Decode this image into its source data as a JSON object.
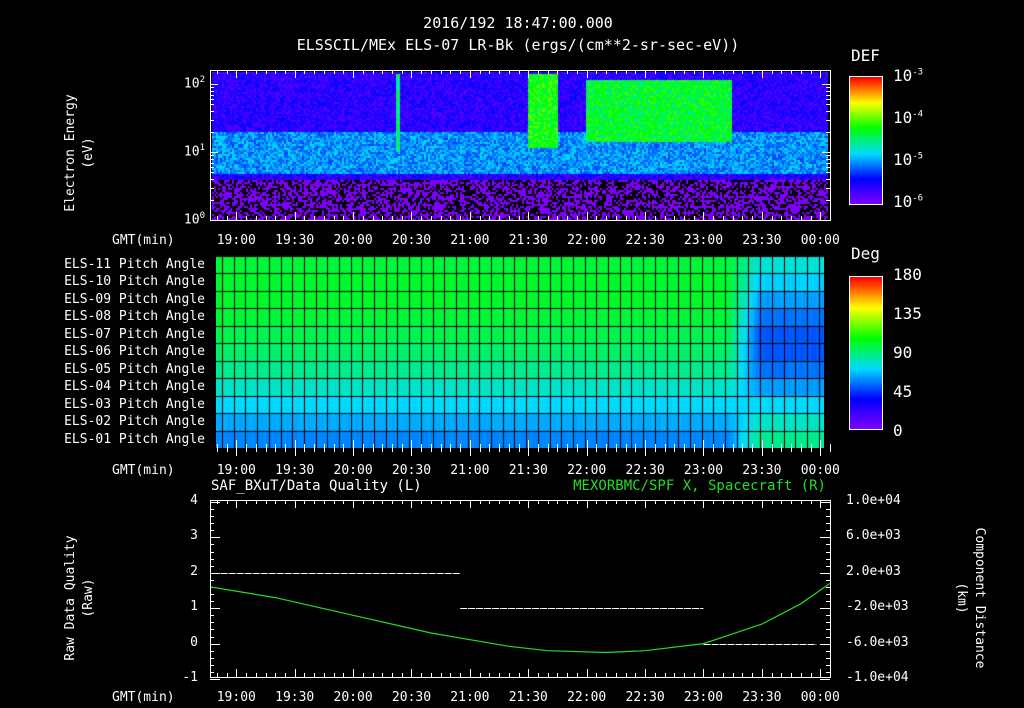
{
  "header": {
    "timestamp": "2016/192 18:47:00.000"
  },
  "colors": {
    "background": "#000000",
    "axis": "#ffffff",
    "spacecraft_line": "#22dd22"
  },
  "time_axis": {
    "label": "GMT(min)",
    "ticks": [
      "19:00",
      "19:30",
      "20:00",
      "20:30",
      "21:00",
      "21:30",
      "22:00",
      "22:30",
      "23:00",
      "23:30",
      "00:00"
    ],
    "start_minute": -13,
    "end_minute": 305
  },
  "chart_data": [
    {
      "type": "heatmap",
      "title": "ELSSCIL/MEx ELS-07 LR-Bk  (ergs/(cm**2-sr-sec-eV))",
      "ylabel": [
        "Electron Energy",
        "(eV)"
      ],
      "yscale": "log",
      "ylim": [
        1,
        150
      ],
      "yticks": [
        {
          "base": "10",
          "exp": "0",
          "value": 1
        },
        {
          "base": "10",
          "exp": "1",
          "value": 10
        },
        {
          "base": "10",
          "exp": "2",
          "value": 100
        }
      ],
      "colorbar": {
        "label": "DEF",
        "scale": "log",
        "range": [
          1e-06,
          0.001
        ],
        "ticks": [
          {
            "base": "10",
            "exp": "-3"
          },
          {
            "base": "10",
            "exp": "-4"
          },
          {
            "base": "10",
            "exp": "-5"
          },
          {
            "base": "10",
            "exp": "-6"
          }
        ]
      },
      "features": [
        {
          "desc": "background",
          "energy_eV": [
            20,
            150
          ],
          "log10_def": -5.6
        },
        {
          "desc": "cyan band",
          "energy_eV": [
            5,
            20
          ],
          "log10_def": -5.0
        },
        {
          "desc": "low energy",
          "energy_eV": [
            1,
            4
          ],
          "log10_def": -6.2
        },
        {
          "desc": "burst",
          "time_min": [
            81,
            84
          ],
          "energy_eV": [
            10,
            150
          ],
          "log10_def": -4.5
        },
        {
          "desc": "bursts",
          "time_min": [
            150,
            165
          ],
          "energy_eV": [
            12,
            150
          ],
          "log10_def": -4.2
        },
        {
          "desc": "broad enhancement",
          "time_min": [
            180,
            255
          ],
          "energy_eV": [
            15,
            120
          ],
          "log10_def": -4.3
        }
      ]
    },
    {
      "type": "heatmap",
      "ylabels": [
        "ELS-11 Pitch Angle",
        "ELS-10 Pitch Angle",
        "ELS-09 Pitch Angle",
        "ELS-08 Pitch Angle",
        "ELS-07 Pitch Angle",
        "ELS-06 Pitch Angle",
        "ELS-05 Pitch Angle",
        "ELS-04 Pitch Angle",
        "ELS-03 Pitch Angle",
        "ELS-02 Pitch Angle",
        "ELS-01 Pitch Angle"
      ],
      "colorbar": {
        "label": "Deg",
        "range": [
          0,
          180
        ],
        "ticks": [
          "180",
          "135",
          "90",
          "45",
          "0"
        ]
      },
      "segments": [
        {
          "time_min": [
            -13,
            260
          ],
          "values_deg": [
            100,
            102,
            102,
            100,
            97,
            93,
            88,
            80,
            72,
            64,
            58
          ]
        },
        {
          "time_min": [
            260,
            305
          ],
          "values_deg": [
            78,
            70,
            62,
            55,
            50,
            50,
            55,
            62,
            72,
            80,
            88
          ]
        }
      ]
    },
    {
      "type": "line",
      "title_left": "SAF_BXuT/Data Quality (L)",
      "title_right": "MEXORBMC/SPF X, Spacecraft (R)",
      "ylabel_left": [
        "Raw Data Quality",
        "(Raw)"
      ],
      "ylabel_right": [
        "Component Distance",
        "(km)"
      ],
      "ylim_left": [
        -1,
        4
      ],
      "yticks_left": [
        "4",
        "3",
        "2",
        "1",
        "0",
        "-1"
      ],
      "ylim_right": [
        -10000,
        10000
      ],
      "yticks_right": [
        "1.0e+04",
        "6.0e+03",
        "2.0e+03",
        "-2.0e+03",
        "-6.0e+03",
        "-1.0e+04"
      ],
      "series": [
        {
          "name": "Data Quality",
          "axis": "left",
          "color": "#ffffff",
          "segments": [
            {
              "x": [
                -8,
                115
              ],
              "y": 2
            },
            {
              "x": [
                115,
                240
              ],
              "y": 1
            },
            {
              "x": [
                240,
                298
              ],
              "y": 0
            }
          ]
        },
        {
          "name": "SPF X",
          "axis": "right",
          "color": "#22dd22",
          "x": [
            -13,
            20,
            60,
            100,
            140,
            160,
            190,
            210,
            240,
            270,
            290,
            305
          ],
          "y": [
            400,
            -800,
            -2800,
            -4800,
            -6300,
            -6800,
            -7000,
            -6800,
            -6000,
            -3800,
            -1500,
            800
          ]
        }
      ]
    }
  ]
}
